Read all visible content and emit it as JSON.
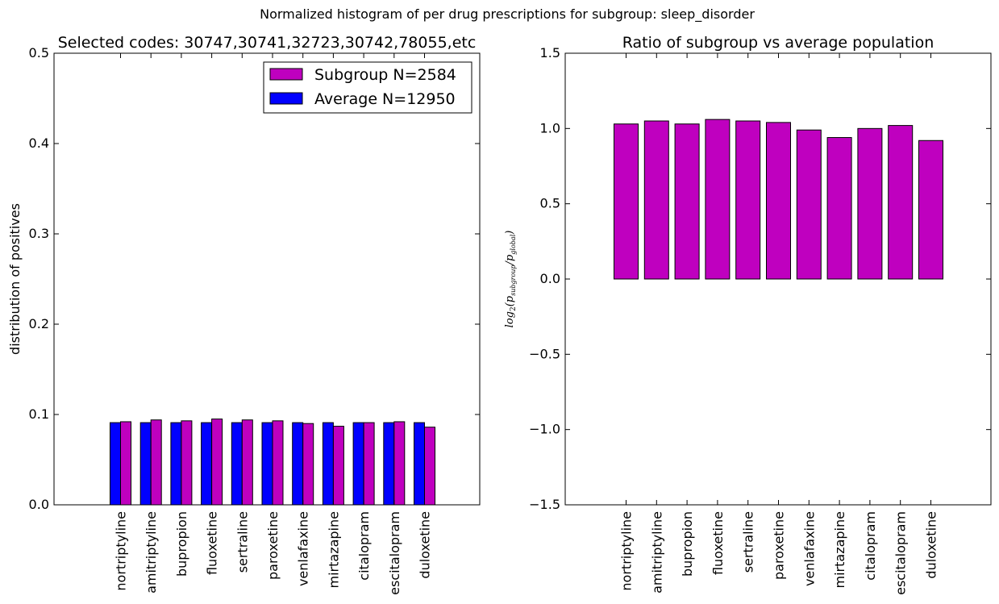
{
  "figure": {
    "suptitle": "Normalized histogram of per drug prescriptions for subgroup: sleep_disorder"
  },
  "colors": {
    "subgroup": "#bf00bf",
    "average": "#0000ff",
    "edge": "#000000"
  },
  "chart_data": [
    {
      "type": "bar",
      "title": "Selected codes: 30747,30741,32723,30742,78055,etc",
      "xlabel": "",
      "ylabel": "distribution of positives",
      "ylim": [
        0.0,
        0.5
      ],
      "yticks": [
        "0.0",
        "0.1",
        "0.2",
        "0.3",
        "0.4",
        "0.5"
      ],
      "categories": [
        "nortriptyline",
        "amitriptyline",
        "bupropion",
        "fluoxetine",
        "sertraline",
        "paroxetine",
        "venlafaxine",
        "mirtazapine",
        "citalopram",
        "escitalopram",
        "duloxetine"
      ],
      "series": [
        {
          "name": "Average N=12950",
          "values": [
            0.091,
            0.091,
            0.091,
            0.091,
            0.091,
            0.091,
            0.091,
            0.091,
            0.091,
            0.091,
            0.091
          ]
        },
        {
          "name": "Subgroup N=2584",
          "values": [
            0.092,
            0.094,
            0.093,
            0.095,
            0.094,
            0.093,
            0.09,
            0.087,
            0.091,
            0.092,
            0.086
          ]
        }
      ],
      "legend": {
        "position": "top-right",
        "entries": [
          "Subgroup N=2584",
          "Average N=12950"
        ]
      },
      "grid": false
    },
    {
      "type": "bar",
      "title": "Ratio of subgroup vs average population",
      "xlabel": "",
      "ylabel": "log2(p_subgroup / p_global)",
      "ylim": [
        -1.5,
        1.5
      ],
      "yticks": [
        "−1.5",
        "−1.0",
        "−0.5",
        "0.0",
        "0.5",
        "1.0",
        "1.5"
      ],
      "categories": [
        "nortriptyline",
        "amitriptyline",
        "bupropion",
        "fluoxetine",
        "sertraline",
        "paroxetine",
        "venlafaxine",
        "mirtazapine",
        "citalopram",
        "escitalopram",
        "duloxetine"
      ],
      "series": [
        {
          "values": [
            1.03,
            1.05,
            1.03,
            1.06,
            1.05,
            1.04,
            0.99,
            0.94,
            1.0,
            1.02,
            0.92
          ]
        }
      ],
      "grid": false
    }
  ]
}
